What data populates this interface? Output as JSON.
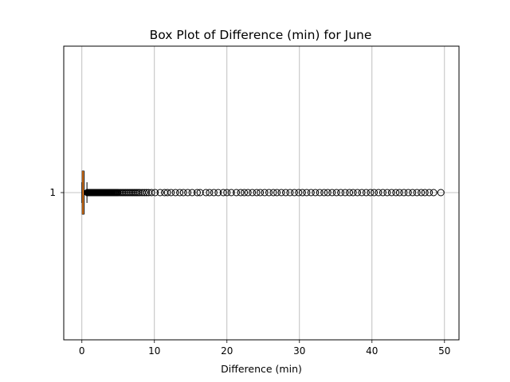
{
  "chart_data": {
    "type": "box",
    "orientation": "horizontal",
    "title": "Box Plot of Difference (min) for June",
    "xlabel": "Difference (min)",
    "ylabel": "",
    "xlim": [
      -2.5,
      52.0
    ],
    "xticks": [
      0,
      10,
      20,
      30,
      40,
      50
    ],
    "xtick_labels": [
      "0",
      "10",
      "20",
      "30",
      "40",
      "50"
    ],
    "yticks": [
      1
    ],
    "ytick_labels": [
      "1"
    ],
    "grid": true,
    "box": {
      "position": 1,
      "whisker_low": 0.0,
      "q1": 0.05,
      "median": 0.15,
      "q3": 0.3,
      "whisker_high": 0.7
    },
    "outliers": [
      0.75,
      0.8,
      0.85,
      0.9,
      0.95,
      1.0,
      1.05,
      1.1,
      1.15,
      1.2,
      1.25,
      1.3,
      1.35,
      1.4,
      1.45,
      1.5,
      1.55,
      1.6,
      1.65,
      1.7,
      1.75,
      1.8,
      1.85,
      1.9,
      1.95,
      2.0,
      2.1,
      2.2,
      2.3,
      2.4,
      2.5,
      2.6,
      2.7,
      2.8,
      2.9,
      3.0,
      3.1,
      3.2,
      3.3,
      3.4,
      3.5,
      3.6,
      3.7,
      3.8,
      3.9,
      4.0,
      4.1,
      4.2,
      4.3,
      4.4,
      4.5,
      4.6,
      4.7,
      4.8,
      4.9,
      5.0,
      5.2,
      5.4,
      5.6,
      5.8,
      6.0,
      6.2,
      6.4,
      6.6,
      6.8,
      7.0,
      7.2,
      7.4,
      7.6,
      7.8,
      8.0,
      8.3,
      8.6,
      8.9,
      9.2,
      9.6,
      10.1,
      10.8,
      11.4,
      11.8,
      12.3,
      12.9,
      13.5,
      14.0,
      14.6,
      15.2,
      15.9,
      16.3,
      17.1,
      17.6,
      18.2,
      18.8,
      19.5,
      20.0,
      20.6,
      21.3,
      21.9,
      22.4,
      22.9,
      23.5,
      24.1,
      24.6,
      25.2,
      25.8,
      26.4,
      26.9,
      27.5,
      28.1,
      28.7,
      29.3,
      29.9,
      30.4,
      31.0,
      31.6,
      32.2,
      32.8,
      33.4,
      33.9,
      34.5,
      35.1,
      35.7,
      36.3,
      36.9,
      37.4,
      38.0,
      38.6,
      39.2,
      39.8,
      40.3,
      40.9,
      41.5,
      42.1,
      42.7,
      43.3,
      43.8,
      44.4,
      45.0,
      45.6,
      46.2,
      46.8,
      47.3,
      47.9,
      48.5,
      49.5
    ]
  }
}
